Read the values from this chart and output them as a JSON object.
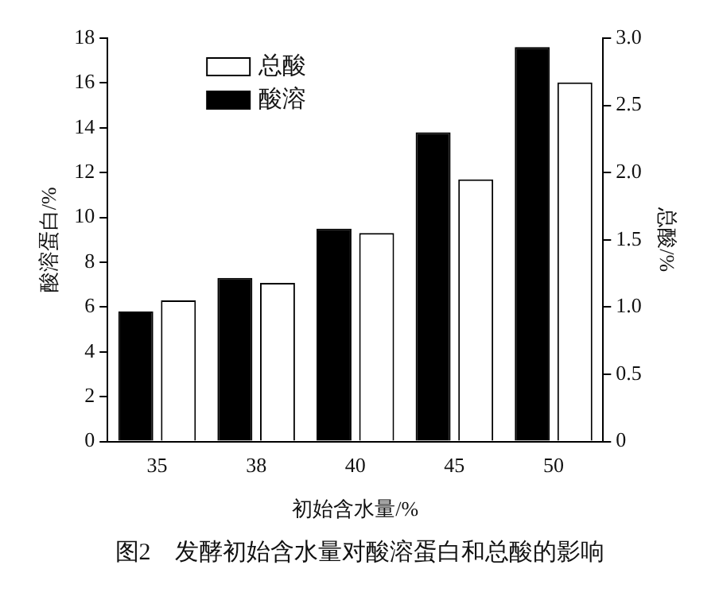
{
  "chart_data": {
    "type": "bar",
    "categories": [
      "35",
      "38",
      "40",
      "45",
      "50"
    ],
    "xlabel": "初始含水量/%",
    "ylabel": "酸溶蛋白/%",
    "y2label": "总酸/%",
    "series": [
      {
        "name": "酸溶",
        "color": "#000000",
        "values": [
          5.8,
          7.3,
          9.5,
          13.8,
          17.6
        ]
      },
      {
        "name": "总酸",
        "color": "#ffffff",
        "axis": "y2",
        "values": [
          1.05,
          1.18,
          1.55,
          1.95,
          2.67
        ]
      }
    ],
    "ylim": [
      0,
      18
    ],
    "yticks": [
      0,
      2,
      4,
      6,
      8,
      10,
      12,
      14,
      16,
      18
    ],
    "y2lim": [
      0,
      3
    ],
    "y2ticks": [
      0,
      {
        "value": 0.5,
        "label": "0.5"
      },
      {
        "value": 1,
        "label": "1.0"
      },
      {
        "value": 1.5,
        "label": "1.5"
      },
      {
        "value": 2,
        "label": "2.0"
      },
      {
        "value": 2.5,
        "label": "2.5"
      },
      {
        "value": 3,
        "label": "3.0"
      }
    ],
    "grid": false,
    "legend": "top left",
    "annotations": [
      "图2　发酵初始含水量对酸溶蛋白和总酸的影响"
    ]
  }
}
